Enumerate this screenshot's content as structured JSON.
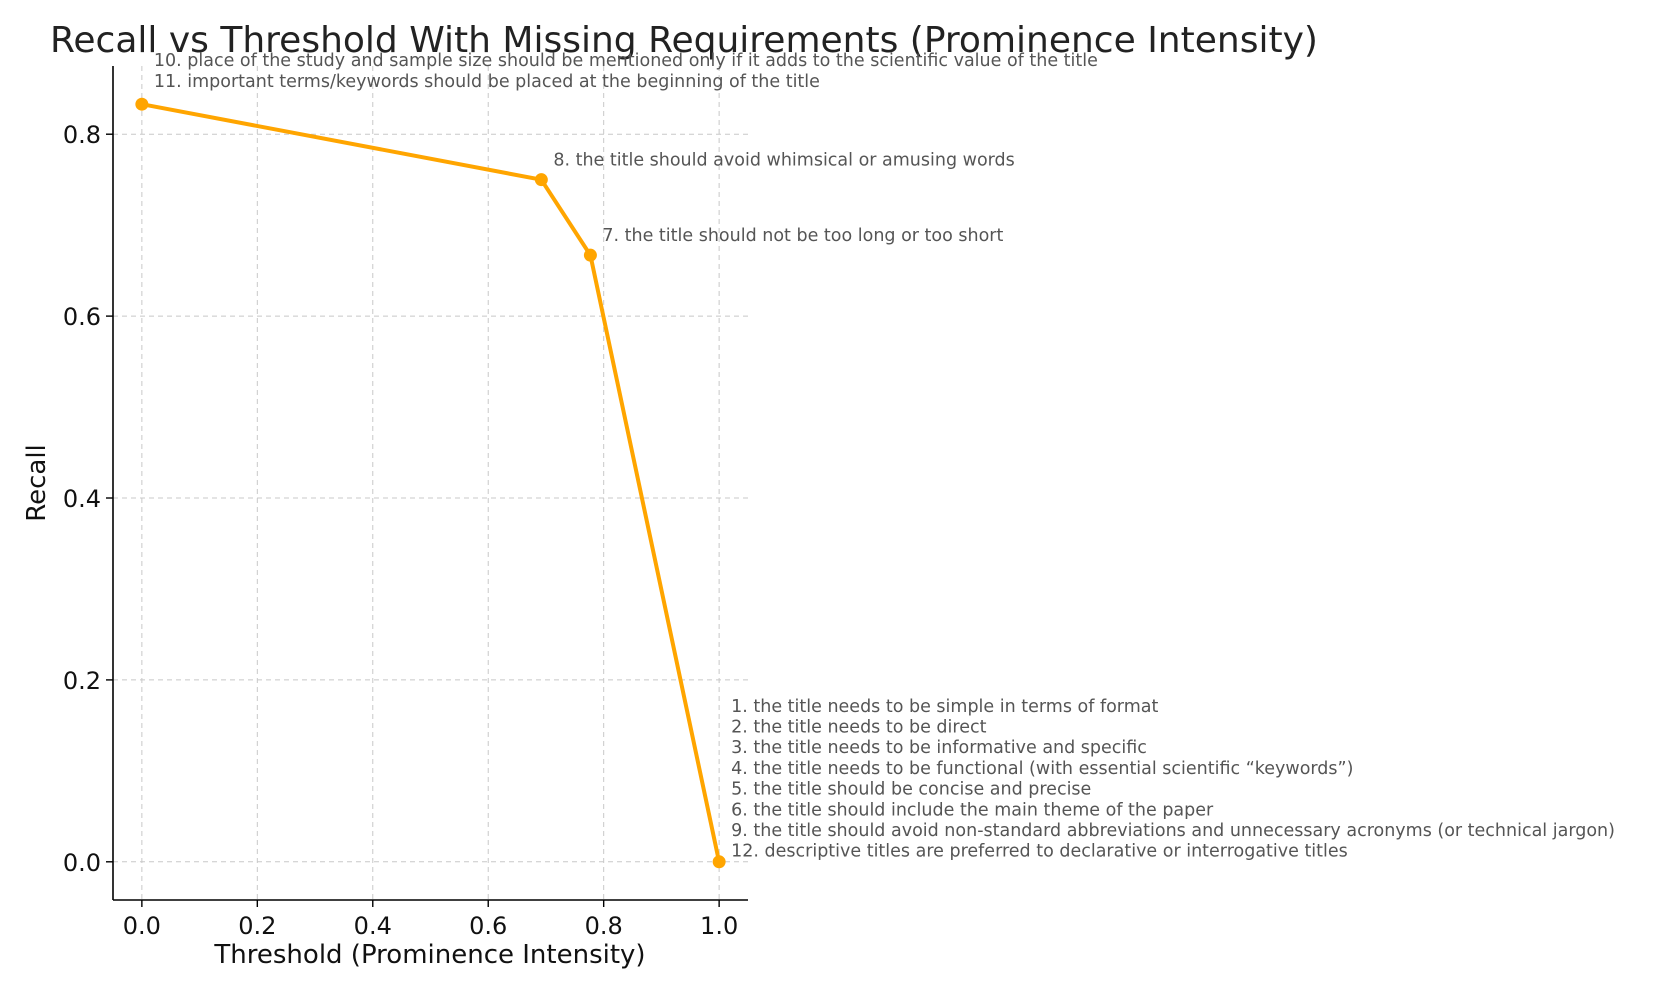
{
  "chart_data": {
    "type": "line",
    "title": "Recall vs Threshold With Missing Requirements (Prominence Intensity)",
    "xlabel": "Threshold (Prominence Intensity)",
    "ylabel": "Recall",
    "xlim": [
      -0.05,
      1.05
    ],
    "ylim": [
      -0.042,
      0.875
    ],
    "xticks": [
      0.0,
      0.2,
      0.4,
      0.6,
      0.8,
      1.0
    ],
    "xtick_labels": [
      "0.0",
      "0.2",
      "0.4",
      "0.6",
      "0.8",
      "1.0"
    ],
    "yticks": [
      0.0,
      0.2,
      0.4,
      0.6,
      0.8
    ],
    "ytick_labels": [
      "0.0",
      "0.2",
      "0.4",
      "0.6",
      "0.8"
    ],
    "grid": true,
    "color": "#FFA500",
    "series": [
      {
        "x": [
          0.0,
          0.692,
          0.777,
          1.0
        ],
        "y": [
          0.833,
          0.75,
          0.667,
          0.0
        ]
      }
    ],
    "annotations": [
      {
        "point_index": 0,
        "lines": [
          "10. place of the study and sample size should be mentioned only if it adds to the scientific value of the title",
          "11. important terms/keywords should be placed at the beginning of the title"
        ]
      },
      {
        "point_index": 1,
        "lines": [
          "8. the title should avoid whimsical or amusing words"
        ]
      },
      {
        "point_index": 2,
        "lines": [
          "7. the title should not be too long or too short"
        ]
      },
      {
        "point_index": 3,
        "lines": [
          "1. the title needs to be simple in terms of format",
          "2. the title needs to be direct",
          "3. the title needs to be informative and specific",
          "4. the title needs to be functional (with essential scientific “keywords”)",
          "5. the title should be concise and precise",
          "6. the title should include the main theme of the paper",
          "9. the title should avoid non-standard abbreviations and unnecessary acronyms (or technical jargon)",
          "12. descriptive titles are preferred to declarative or interrogative titles"
        ]
      }
    ]
  }
}
